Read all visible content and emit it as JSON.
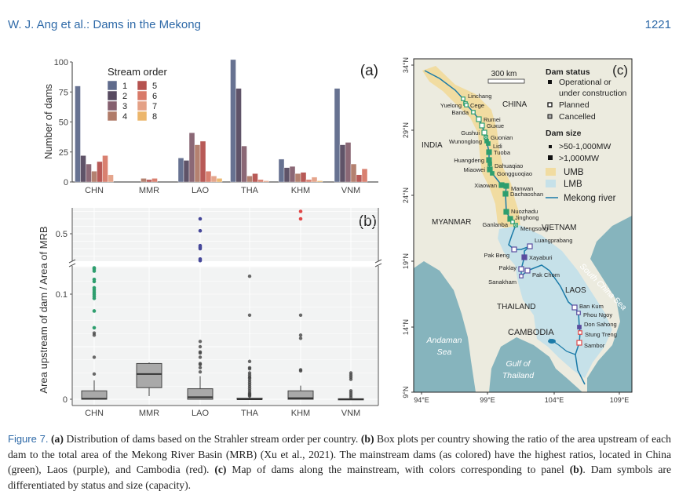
{
  "header": {
    "running_title": "W. J. Ang et al.: Dams in the Mekong",
    "page_number": "1221"
  },
  "caption": {
    "figure_label": "Figure 7.",
    "a_tag": "(a)",
    "a_text": " Distribution of dams based on the Strahler stream order per country. ",
    "b_tag": "(b)",
    "b_text": " Box plots per country showing the ratio of the area upstream of each dam to the total area of the Mekong River Basin (MRB) (Xu et al., 2021). The mainstream dams (as colored) have the highest ratios, located in China (green), Laos (purple), and Cambodia (red). ",
    "c_tag": "(c)",
    "c_text": " Map of dams along the mainstream, with colors corresponding to panel ",
    "b_tag2": "(b)",
    "end_text": ". Dam symbols are differentiated by status and size (capacity)."
  },
  "chart_data": [
    {
      "type": "bar",
      "panel_label": "(a)",
      "title": "",
      "xlabel": "",
      "ylabel": "Number of dams",
      "ylim": [
        0,
        100
      ],
      "yticks": [
        "0",
        "25",
        "50",
        "75",
        "100"
      ],
      "categories": [
        "CHN",
        "MMR",
        "LAO",
        "THA",
        "KHM",
        "VNM"
      ],
      "legend": {
        "title": "Stream order",
        "placement": "top-left",
        "entries": [
          "1",
          "2",
          "3",
          "4",
          "5",
          "6",
          "7",
          "8"
        ]
      },
      "colors": [
        "#5f6b8c",
        "#574a60",
        "#85606f",
        "#b07b69",
        "#b5524f",
        "#d87a69",
        "#e4a186",
        "#ecb66c"
      ],
      "series": [
        {
          "name": "1",
          "values": [
            80,
            0,
            20,
            102,
            19,
            78
          ]
        },
        {
          "name": "2",
          "values": [
            22,
            0,
            18,
            78,
            12,
            31
          ]
        },
        {
          "name": "3",
          "values": [
            15,
            0,
            41,
            30,
            13,
            33
          ]
        },
        {
          "name": "4",
          "values": [
            9,
            3,
            31,
            5,
            7,
            15
          ]
        },
        {
          "name": "5",
          "values": [
            17,
            2,
            34,
            7,
            8,
            6
          ]
        },
        {
          "name": "6",
          "values": [
            22,
            3,
            9,
            2,
            2,
            11
          ]
        },
        {
          "name": "7",
          "values": [
            6,
            0,
            5,
            1,
            4,
            0
          ]
        },
        {
          "name": "8",
          "values": [
            0,
            0,
            3,
            0,
            1,
            0
          ]
        }
      ]
    },
    {
      "type": "box",
      "panel_label": "(b)",
      "ylabel": "Area upstream of dam / Area of MRB",
      "categories": [
        "CHN",
        "MMR",
        "LAO",
        "THA",
        "KHM",
        "VNM"
      ],
      "yticks_lower": [
        "0",
        "0.1"
      ],
      "yticks_upper": [
        "0.5"
      ],
      "axis_break": true,
      "boxes": [
        {
          "q1": 0,
          "median": 0.0005,
          "q3": 0.008,
          "whisker_low": 0,
          "whisker_high": 0.018,
          "outliers": [
            0.063,
            0.061,
            0.04,
            0.024
          ],
          "mainstream_color": "#2e9e6e",
          "mainstream": [
            0.125,
            0.124,
            0.122,
            0.114,
            0.112,
            0.106,
            0.104,
            0.102,
            0.1,
            0.098,
            0.096,
            0.084,
            0.068
          ]
        },
        {
          "q1": 0.011,
          "median": 0.024,
          "q3": 0.034,
          "whisker_low": 0.003,
          "whisker_high": 0.035,
          "outliers": [],
          "mainstream": []
        },
        {
          "q1": 0,
          "median": 0.002,
          "q3": 0.01,
          "whisker_low": 0,
          "whisker_high": 0.022,
          "outliers": [
            0.055,
            0.05,
            0.045,
            0.044,
            0.04,
            0.034,
            0.033,
            0.03,
            0.026
          ],
          "mainstream_color": "#46489a",
          "mainstream_upper": [
            0.6,
            0.52,
            0.42,
            0.41,
            0.4,
            0.33,
            0.32
          ]
        },
        {
          "q1": 0,
          "median": 0,
          "q3": 0.001,
          "whisker_low": 0,
          "whisker_high": 0.002,
          "outliers": [
            0.117,
            0.08,
            0.036,
            0.03,
            0.029,
            0.025,
            0.023,
            0.021,
            0.02,
            0.018,
            0.016,
            0.014,
            0.012,
            0.01,
            0.008,
            0.006,
            0.005,
            0.004,
            0.003
          ]
        },
        {
          "q1": 0,
          "median": 0.001,
          "q3": 0.008,
          "whisker_low": 0,
          "whisker_high": 0.013,
          "outliers": [
            0.08,
            0.061,
            0.058,
            0.028,
            0.027
          ],
          "mainstream_color": "#e04848",
          "mainstream_upper": [
            0.65,
            0.6
          ]
        },
        {
          "q1": 0,
          "median": 0,
          "q3": 0.0005,
          "whisker_low": 0,
          "whisker_high": 0.001,
          "outliers": [
            0.025,
            0.023,
            0.021,
            0.019,
            0.008,
            0.006,
            0.004,
            0.002
          ]
        }
      ]
    }
  ],
  "map": {
    "panel_label": "(c)",
    "scale_bar": "300 km",
    "lat_ticks": [
      "34°N",
      "29°N",
      "24°N",
      "19°N",
      "14°N",
      "9°N"
    ],
    "lon_ticks": [
      "94°E",
      "99°E",
      "104°E",
      "109°E"
    ],
    "countries": [
      "CHINA",
      "INDIA",
      "MYANMAR",
      "VIETNAM",
      "LAOS",
      "THAILAND",
      "CAMBODIA"
    ],
    "seas": [
      "Andaman",
      "Sea",
      "Gulf of",
      "Thailand",
      "South China Sea"
    ],
    "legend": {
      "status_title": "Dam status",
      "operational_1": "Operational or",
      "operational_2": "under construction",
      "planned": "Planned",
      "cancelled": "Cancelled",
      "size_title": "Dam size",
      "small": ">50-1,000MW",
      "large": ">1,000MW",
      "umb": "UMB",
      "lmb": "LMB",
      "river": "Mekong river"
    },
    "colors": {
      "land": "#ecebdf",
      "sea": "#86b4bd",
      "umb": "#f1dca1",
      "lmb": "#c6e1e9",
      "river": "#1a7aa8",
      "china": "#2e9e6e",
      "laos": "#5a4c9e",
      "cambodia": "#e04848"
    },
    "dams": [
      {
        "name": "Linchang",
        "country": "china",
        "status": "planned",
        "size": "small"
      },
      {
        "name": "Cege",
        "country": "china",
        "status": "planned",
        "size": "small"
      },
      {
        "name": "Yuelong",
        "country": "china",
        "status": "planned",
        "size": "small"
      },
      {
        "name": "Banda",
        "country": "china",
        "status": "planned",
        "size": "small"
      },
      {
        "name": "Rumei",
        "country": "china",
        "status": "planned",
        "size": "large"
      },
      {
        "name": "Guxue",
        "country": "china",
        "status": "planned",
        "size": "large"
      },
      {
        "name": "Gushui",
        "country": "china",
        "status": "planned",
        "size": "large"
      },
      {
        "name": "Guonian",
        "country": "china",
        "status": "cancelled",
        "size": "small"
      },
      {
        "name": "Wunonglong",
        "country": "china",
        "status": "operational",
        "size": "small"
      },
      {
        "name": "Lidi",
        "country": "china",
        "status": "operational",
        "size": "small"
      },
      {
        "name": "Tuoba",
        "country": "china",
        "status": "operational",
        "size": "large"
      },
      {
        "name": "Huangdeng",
        "country": "china",
        "status": "operational",
        "size": "large"
      },
      {
        "name": "Dahuaqiao",
        "country": "china",
        "status": "operational",
        "size": "small"
      },
      {
        "name": "Miaowei",
        "country": "china",
        "status": "operational",
        "size": "large"
      },
      {
        "name": "Gongguoqiao",
        "country": "china",
        "status": "operational",
        "size": "small"
      },
      {
        "name": "Xiaowan",
        "country": "china",
        "status": "operational",
        "size": "large"
      },
      {
        "name": "Manwan",
        "country": "china",
        "status": "operational",
        "size": "large"
      },
      {
        "name": "Dachaoshan",
        "country": "china",
        "status": "operational",
        "size": "large"
      },
      {
        "name": "Nuozhadu",
        "country": "china",
        "status": "operational",
        "size": "large"
      },
      {
        "name": "Jinghong",
        "country": "china",
        "status": "operational",
        "size": "large"
      },
      {
        "name": "Ganlanba",
        "country": "china",
        "status": "planned",
        "size": "small"
      },
      {
        "name": "Mengsong",
        "country": "china",
        "status": "cancelled",
        "size": "small"
      },
      {
        "name": "Luangprabang",
        "country": "laos",
        "status": "planned",
        "size": "large"
      },
      {
        "name": "Pak Beng",
        "country": "laos",
        "status": "planned",
        "size": "large"
      },
      {
        "name": "Xayaburi",
        "country": "laos",
        "status": "operational",
        "size": "large"
      },
      {
        "name": "Paklay",
        "country": "laos",
        "status": "planned",
        "size": "large"
      },
      {
        "name": "Sanakham",
        "country": "laos",
        "status": "planned",
        "size": "small"
      },
      {
        "name": "Pak Chom",
        "country": "laos",
        "status": "planned",
        "size": "large"
      },
      {
        "name": "Ban Kum",
        "country": "laos",
        "status": "planned",
        "size": "large"
      },
      {
        "name": "Phou Ngoy",
        "country": "laos",
        "status": "planned",
        "size": "small"
      },
      {
        "name": "Don Sahong",
        "country": "laos",
        "status": "operational",
        "size": "small"
      },
      {
        "name": "Stung Treng",
        "country": "cambodia",
        "status": "planned",
        "size": "small"
      },
      {
        "name": "Sambor",
        "country": "cambodia",
        "status": "planned",
        "size": "large"
      }
    ]
  }
}
